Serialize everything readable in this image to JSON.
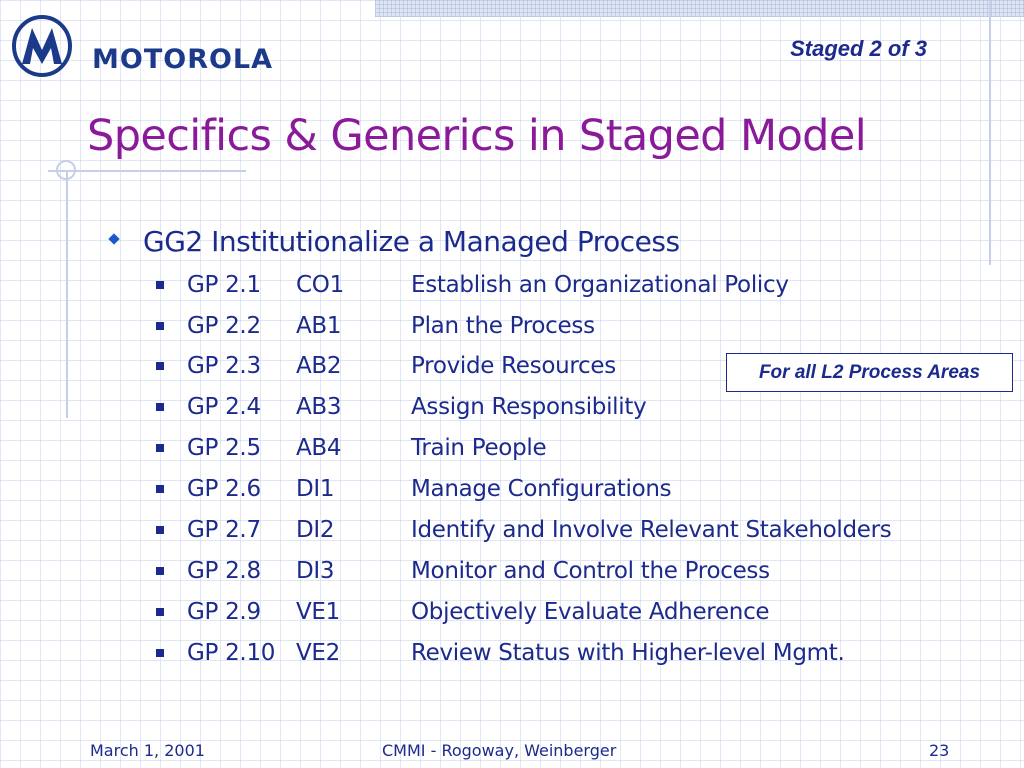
{
  "header": {
    "logo_text": "MOTOROLA",
    "logo_icon": "motorola-batwing-m-icon",
    "slide_tag": "Staged 2 of 3"
  },
  "title": "Specifics & Generics in Staged Model",
  "bullet": {
    "icon": "diamond-bullet-icon",
    "text": "GG2 Institutionalize a Managed Process"
  },
  "practices": [
    {
      "gp": "GP 2.1",
      "code": "CO1",
      "desc": "Establish an Organizational Policy"
    },
    {
      "gp": "GP 2.2",
      "code": "AB1",
      "desc": "Plan the Process"
    },
    {
      "gp": "GP 2.3",
      "code": "AB2",
      "desc": "Provide Resources"
    },
    {
      "gp": "GP 2.4",
      "code": "AB3",
      "desc": "Assign Responsibility"
    },
    {
      "gp": "GP 2.5",
      "code": "AB4",
      "desc": "Train People"
    },
    {
      "gp": "GP 2.6",
      "code": "DI1",
      "desc": "Manage Configurations"
    },
    {
      "gp": "GP 2.7",
      "code": "DI2",
      "desc": "Identify and Involve Relevant Stakeholders"
    },
    {
      "gp": "GP 2.8",
      "code": "DI3",
      "desc": "Monitor and Control the Process"
    },
    {
      "gp": "GP 2.9",
      "code": "VE1",
      "desc": "Objectively Evaluate Adherence"
    },
    {
      "gp": "GP 2.10",
      "code": "VE2",
      "desc": "Review Status with Higher-level Mgmt."
    }
  ],
  "callout": "For all L2 Process Areas",
  "footer": {
    "date": "March 1, 2001",
    "center": "CMMI - Rogoway, Weinberger",
    "page": "23"
  },
  "colors": {
    "title": "#8b1a9b",
    "text": "#1b2a8c",
    "logo": "#1b3a8a",
    "accent_bullet": "#1b5ac8",
    "grid": "#c8d2eb"
  }
}
